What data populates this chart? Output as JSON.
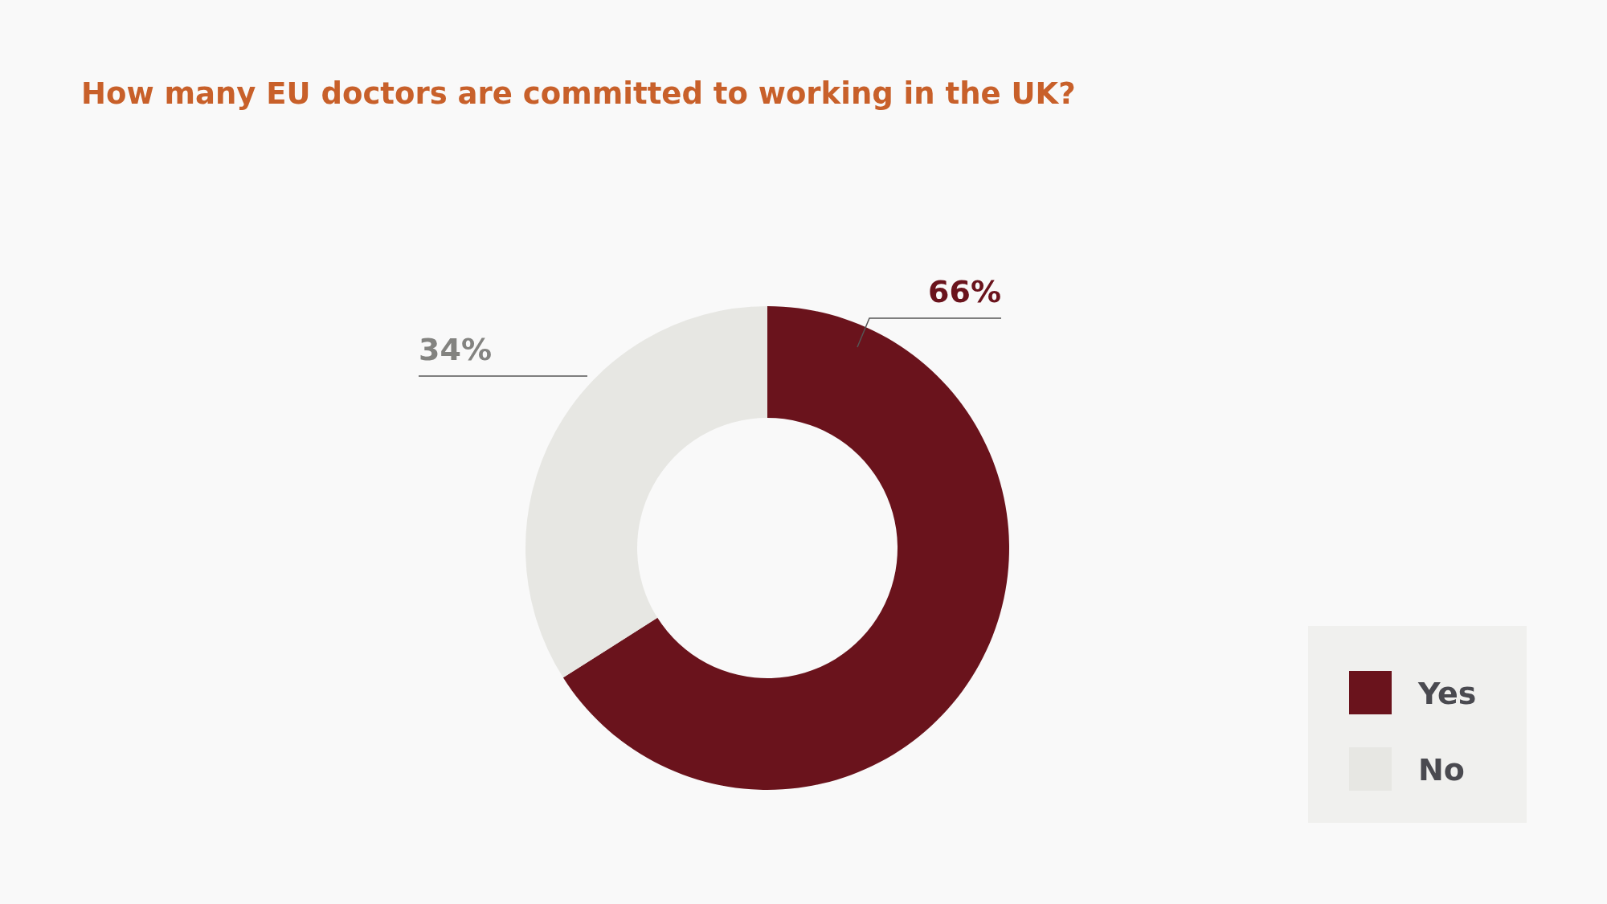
{
  "chart_data": {
    "type": "donut",
    "title": "How many EU doctors are committed to working in the UK?",
    "categories": [
      "Yes",
      "No"
    ],
    "values": [
      66,
      34
    ],
    "colors": [
      "#6a131c",
      "#e7e7e3"
    ],
    "value_labels": [
      "66%",
      "34%"
    ],
    "legend": "bottom right"
  }
}
